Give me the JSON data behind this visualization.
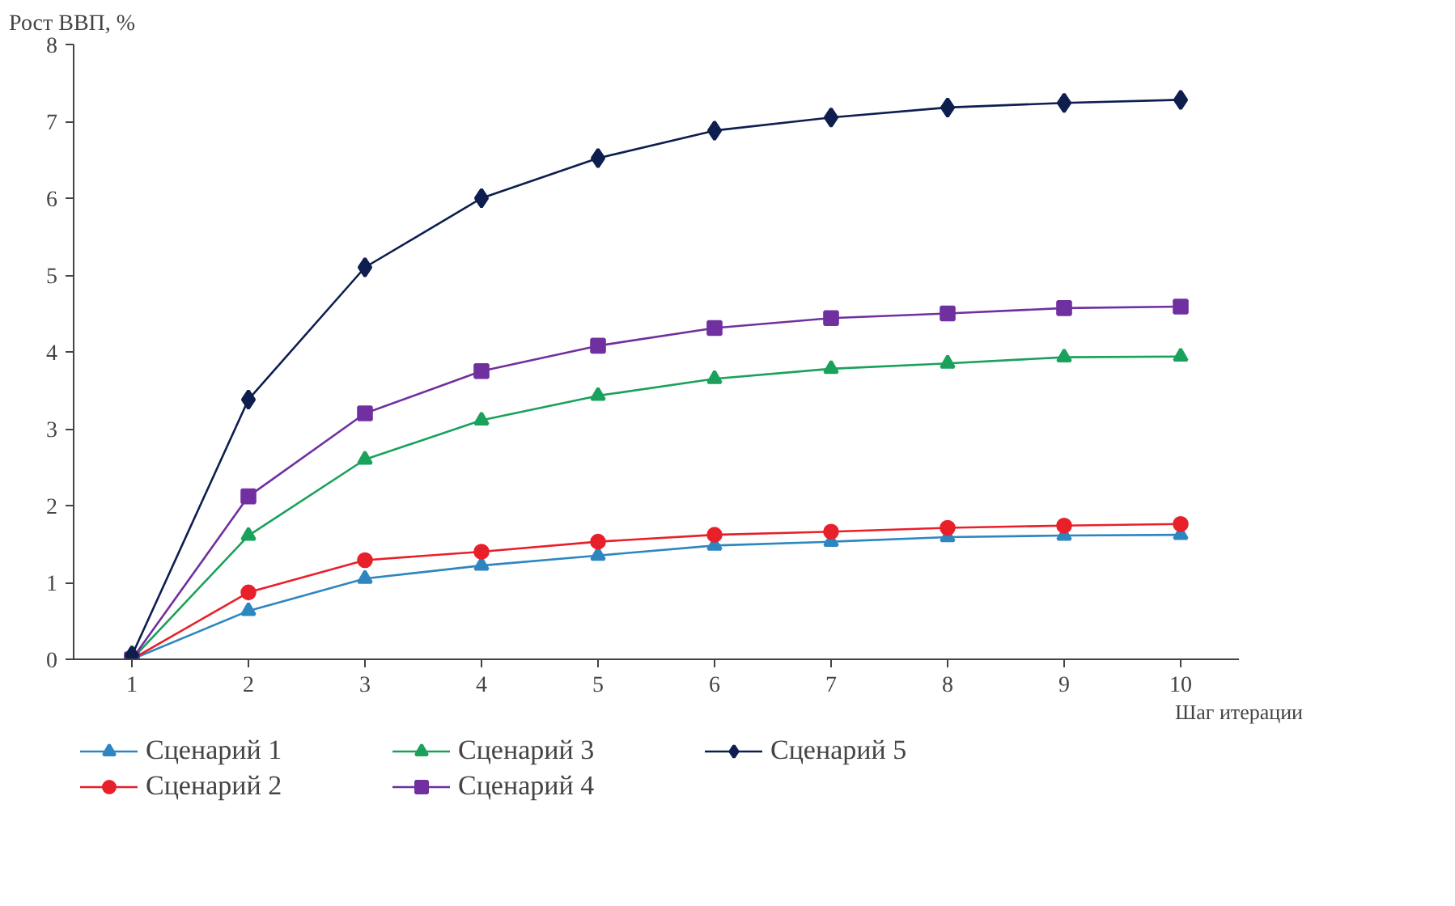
{
  "chart_data": {
    "type": "line",
    "ylabel": "Рост ВВП, %",
    "xlabel": "Шаг итерации",
    "x": [
      1,
      2,
      3,
      4,
      5,
      6,
      7,
      8,
      9,
      10
    ],
    "xlim": [
      0.5,
      10.5
    ],
    "xticks": [
      1,
      2,
      3,
      4,
      5,
      6,
      7,
      8,
      9,
      10
    ],
    "ylim": [
      0,
      8
    ],
    "yticks": [
      0,
      1,
      2,
      3,
      4,
      5,
      6,
      7,
      8
    ],
    "grid": false,
    "legend": "bottom",
    "line_style": "solid",
    "series": [
      {
        "name": "Сценарий 1",
        "color": "#2e86c1",
        "marker": "triangle",
        "values": [
          0,
          0.63,
          1.05,
          1.22,
          1.35,
          1.48,
          1.53,
          1.59,
          1.61,
          1.62
        ]
      },
      {
        "name": "Сценарий 2",
        "color": "#e8202a",
        "marker": "circle",
        "values": [
          0,
          0.87,
          1.29,
          1.4,
          1.53,
          1.62,
          1.66,
          1.71,
          1.74,
          1.76
        ]
      },
      {
        "name": "Сценарий 3",
        "color": "#1aa15b",
        "marker": "triangle",
        "values": [
          0,
          1.61,
          2.6,
          3.11,
          3.43,
          3.65,
          3.78,
          3.85,
          3.93,
          3.94
        ]
      },
      {
        "name": "Сценарий 4",
        "color": "#7030a0",
        "marker": "square",
        "values": [
          0,
          2.12,
          3.2,
          3.75,
          4.08,
          4.31,
          4.44,
          4.5,
          4.57,
          4.59
        ]
      },
      {
        "name": "Сценарий 5",
        "color": "#0d1e4f",
        "marker": "diamond",
        "values": [
          0.05,
          3.38,
          5.1,
          6.0,
          6.52,
          6.88,
          7.05,
          7.18,
          7.24,
          7.28
        ]
      }
    ]
  }
}
